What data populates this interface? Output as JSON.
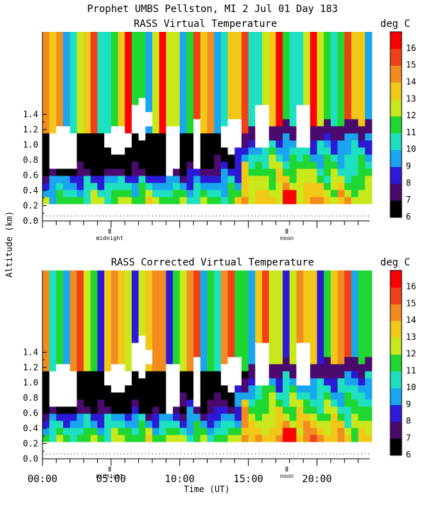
{
  "chart_data": [
    {
      "type": "heatmap",
      "header": "Prophet   UMBS Pellston, MI    2 Jul 01 Day 183",
      "title": "RASS Virtual Temperature",
      "units": "deg C",
      "ylabel": "Altitude (km)",
      "xlim": [
        0,
        24
      ],
      "ylim": [
        0,
        1.55
      ],
      "yticks": [
        "0.0",
        "0.2",
        "0.4",
        "0.6",
        "0.8",
        "1.0",
        "1.2",
        "1.4"
      ],
      "colorbar": {
        "min": 6,
        "max": 17,
        "labels": [
          "6",
          "7",
          "8",
          "9",
          "10",
          "11",
          "12",
          "13",
          "14",
          "15",
          "16"
        ]
      },
      "markers": [
        {
          "x": 4.9,
          "label": "midnight"
        },
        {
          "x": 17.8,
          "label": "noon"
        }
      ],
      "missing_data": "white"
    },
    {
      "type": "heatmap",
      "title": "RASS Corrected Virtual Temperature",
      "units": "deg C",
      "xlabel": "Time (UT)",
      "xlim": [
        0,
        24
      ],
      "ylim": [
        0,
        1.55
      ],
      "xticks": [
        "00:00",
        "05:00",
        "10:00",
        "15:00",
        "20:00"
      ],
      "yticks": [
        "0.0",
        "0.2",
        "0.4",
        "0.6",
        "0.8",
        "1.0",
        "1.2",
        "1.4"
      ],
      "colorbar": {
        "min": 6,
        "max": 17,
        "labels": [
          "6",
          "7",
          "8",
          "9",
          "10",
          "11",
          "12",
          "13",
          "14",
          "15",
          "16"
        ]
      },
      "markers": [
        {
          "x": 4.9,
          "label": "midnight"
        },
        {
          "x": 17.8,
          "label": "noon"
        }
      ],
      "missing_data": "white"
    }
  ],
  "palette": [
    "#000000",
    "#4a0a6e",
    "#2b1ad6",
    "#19a6ee",
    "#1ee0c0",
    "#20d630",
    "#c8e81c",
    "#f2c818",
    "#f28c1e",
    "#f04018",
    "#ff0000"
  ]
}
